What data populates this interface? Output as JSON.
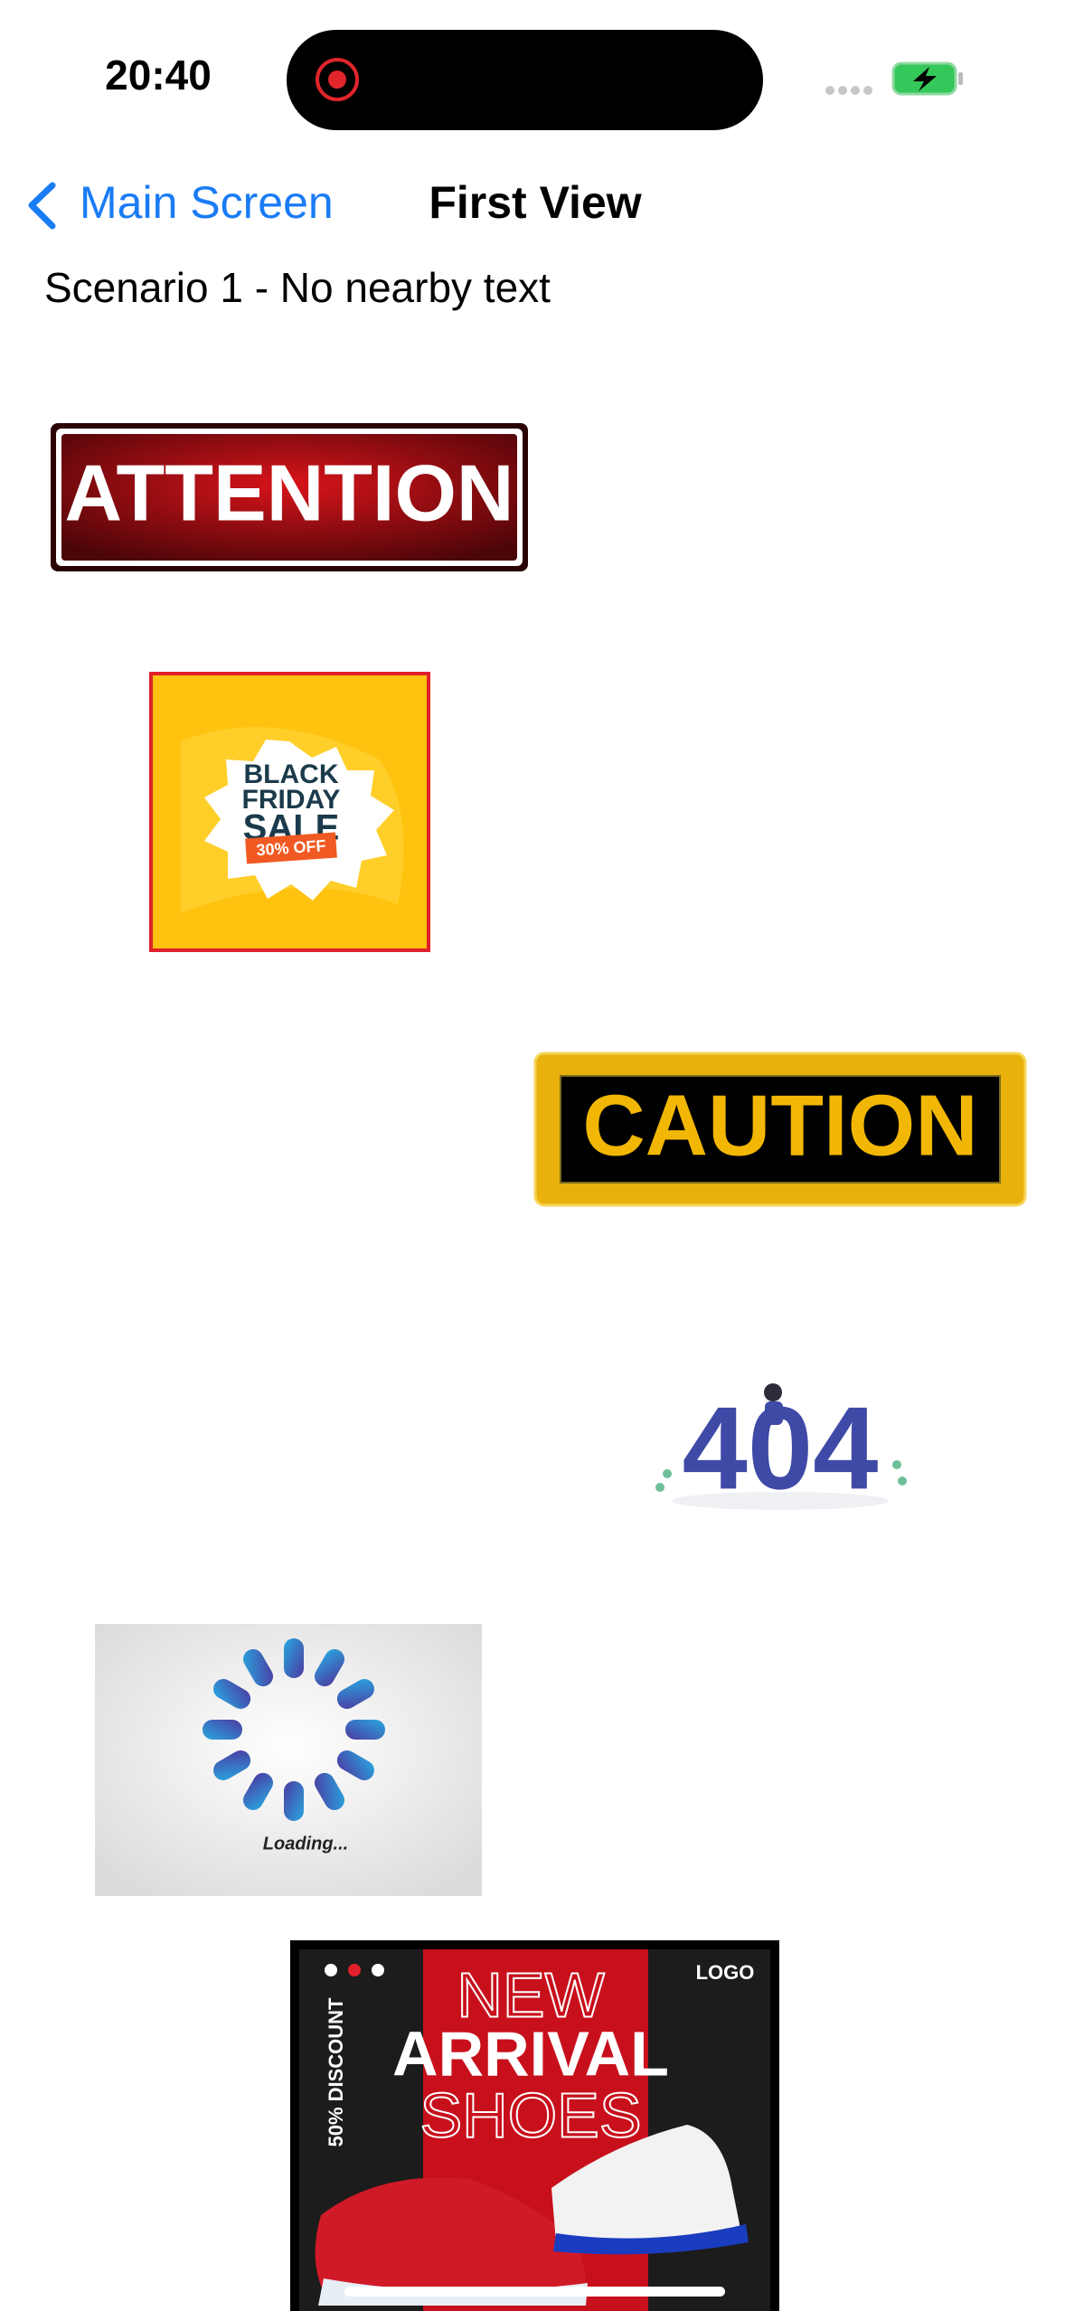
{
  "status_bar": {
    "time": "20:40"
  },
  "nav": {
    "back": "Main Screen",
    "title": "First View"
  },
  "content": {
    "subtitle": "Scenario 1 - No nearby text"
  },
  "images": {
    "attention": "ATTENTION",
    "black_friday": [
      "BLACK",
      "FRIDAY",
      "SALE",
      "30% OFF"
    ],
    "caution": "CAUTION",
    "not_found": "404",
    "loading": "Loading...",
    "shoes": {
      "top_line": "NEW",
      "middle_line": "ARRIVAL",
      "bottom_line": "SHOES",
      "logo": "LOGO",
      "discount": "50% DISCOUNT"
    }
  }
}
